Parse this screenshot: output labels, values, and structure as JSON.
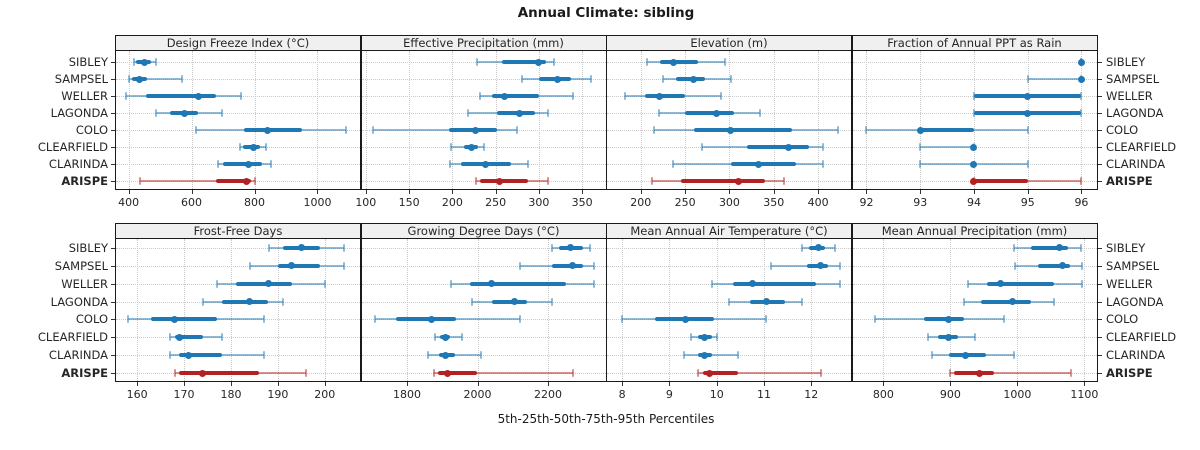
{
  "title": "Annual Climate: sibling",
  "caption": "5th-25th-50th-75th-95th Percentiles",
  "colors": {
    "series_blue": "#1f77b4",
    "highlight_red": "#b22222",
    "header_bg": "#f0f0f0",
    "panel_border": "#1a1a1a",
    "grid": "#c9c9c9",
    "tick_text": "#262626"
  },
  "chart_data": {
    "type": "scatter",
    "subtype": "percentile-interval-dotplot",
    "title": "Annual Climate: sibling",
    "caption": "5th-25th-50th-75th-95th Percentiles",
    "percentiles": [
      5,
      25,
      50,
      75,
      95
    ],
    "grid": "dotted",
    "legend": "none",
    "categories": [
      "SIBLEY",
      "SAMPSEL",
      "WELLER",
      "LAGONDA",
      "COLO",
      "CLEARFIELD",
      "CLARINDA",
      "ARISPE"
    ],
    "highlight_category": "ARISPE",
    "panels": [
      {
        "title": "Design Freeze Index (°C)",
        "row": 0,
        "col": 0,
        "xlim": [
          360,
          1135
        ],
        "ticks": [
          400,
          600,
          800,
          1000
        ],
        "series": [
          [
            416,
            425,
            452,
            470,
            487
          ],
          [
            400,
            410,
            435,
            458,
            570
          ],
          [
            391,
            456,
            623,
            679,
            756
          ],
          [
            487,
            533,
            577,
            620,
            698
          ],
          [
            615,
            765,
            840,
            950,
            1090
          ],
          [
            754,
            762,
            797,
            818,
            835
          ],
          [
            684,
            700,
            781,
            823,
            852
          ],
          [
            435,
            677,
            774,
            790,
            803
          ]
        ]
      },
      {
        "title": "Effective Precipitation (mm)",
        "row": 0,
        "col": 1,
        "xlim": [
          95,
          377
        ],
        "ticks": [
          100,
          150,
          200,
          250,
          300,
          350
        ],
        "series": [
          [
            228,
            257,
            300,
            308,
            318
          ],
          [
            280,
            300,
            322,
            337,
            360
          ],
          [
            232,
            246,
            260,
            300,
            340
          ],
          [
            218,
            252,
            278,
            295,
            310
          ],
          [
            108,
            196,
            227,
            252,
            275
          ],
          [
            198,
            213,
            222,
            230,
            237
          ],
          [
            197,
            210,
            238,
            268,
            288
          ],
          [
            227,
            232,
            255,
            288,
            310
          ]
        ]
      },
      {
        "title": "Elevation (m)",
        "row": 0,
        "col": 2,
        "xlim": [
          162,
          437
        ],
        "ticks": [
          200,
          250,
          300,
          350,
          400
        ],
        "series": [
          [
            207,
            222,
            237,
            265,
            295
          ],
          [
            225,
            240,
            260,
            272,
            302
          ],
          [
            182,
            205,
            221,
            250,
            290
          ],
          [
            221,
            250,
            285,
            305,
            335
          ],
          [
            215,
            260,
            301,
            370,
            422
          ],
          [
            269,
            320,
            367,
            390,
            405
          ],
          [
            236,
            302,
            333,
            375,
            405
          ],
          [
            213,
            245,
            310,
            340,
            362
          ]
        ]
      },
      {
        "title": "Fraction of Annual PPT as Rain",
        "row": 0,
        "col": 3,
        "xlim": [
          91.74,
          96.28
        ],
        "ticks": [
          92,
          93,
          94,
          95,
          96
        ],
        "series": [
          [
            96,
            96,
            96,
            96,
            96
          ],
          [
            95,
            96,
            96,
            96,
            96
          ],
          [
            94,
            94,
            95,
            96,
            96
          ],
          [
            94,
            94,
            95,
            96,
            96
          ],
          [
            92,
            93,
            93,
            94,
            95
          ],
          [
            93,
            94,
            94,
            94,
            94
          ],
          [
            93,
            94,
            94,
            94,
            95
          ],
          [
            94,
            94,
            94,
            95,
            96
          ]
        ]
      },
      {
        "title": "Frost-Free Days",
        "row": 1,
        "col": 0,
        "xlim": [
          155.5,
          207.5
        ],
        "ticks": [
          160,
          170,
          180,
          190,
          200
        ],
        "series": [
          [
            188,
            191,
            195,
            199,
            204
          ],
          [
            184,
            190,
            193,
            199,
            204
          ],
          [
            177,
            181,
            188,
            193,
            200
          ],
          [
            174,
            178,
            184,
            188,
            191
          ],
          [
            158,
            163,
            168,
            177,
            187
          ],
          [
            167,
            168,
            169,
            174,
            178
          ],
          [
            167,
            169,
            171,
            178,
            187
          ],
          [
            168,
            169,
            174,
            186,
            196
          ]
        ]
      },
      {
        "title": "Growing Degree Days (°C)",
        "row": 1,
        "col": 1,
        "xlim": [
          1671,
          2363
        ],
        "ticks": [
          1800,
          2000,
          2200
        ],
        "series": [
          [
            2210,
            2230,
            2265,
            2300,
            2320
          ],
          [
            2120,
            2210,
            2270,
            2300,
            2330
          ],
          [
            1925,
            1980,
            2040,
            2250,
            2330
          ],
          [
            1985,
            2040,
            2105,
            2140,
            2210
          ],
          [
            1710,
            1770,
            1870,
            1940,
            2120
          ],
          [
            1880,
            1893,
            1910,
            1922,
            1955
          ],
          [
            1860,
            1890,
            1910,
            1935,
            2010
          ],
          [
            1878,
            1888,
            1915,
            2000,
            2270
          ]
        ]
      },
      {
        "title": "Mean Annual Air Temperature (°C)",
        "row": 1,
        "col": 2,
        "xlim": [
          7.68,
          12.84
        ],
        "ticks": [
          8,
          9,
          10,
          11,
          12
        ],
        "series": [
          [
            11.8,
            11.95,
            12.15,
            12.3,
            12.5
          ],
          [
            11.15,
            11.9,
            12.2,
            12.35,
            12.6
          ],
          [
            9.9,
            10.35,
            10.75,
            12.1,
            12.6
          ],
          [
            10.25,
            10.7,
            11.05,
            11.45,
            11.8
          ],
          [
            8.0,
            8.7,
            9.35,
            9.95,
            11.05
          ],
          [
            9.45,
            9.6,
            9.75,
            9.9,
            10.0
          ],
          [
            9.3,
            9.6,
            9.75,
            9.9,
            10.45
          ],
          [
            9.6,
            9.7,
            9.85,
            10.45,
            12.2
          ]
        ]
      },
      {
        "title": "Mean Annual Precipitation (mm)",
        "row": 1,
        "col": 3,
        "xlim": [
          754,
          1118
        ],
        "ticks": [
          800,
          900,
          1000,
          1100
        ],
        "series": [
          [
            995,
            1020,
            1063,
            1075,
            1095
          ],
          [
            997,
            1030,
            1067,
            1078,
            1097
          ],
          [
            927,
            955,
            975,
            1055,
            1096
          ],
          [
            920,
            945,
            993,
            1020,
            1055
          ],
          [
            787,
            860,
            897,
            920,
            980
          ],
          [
            867,
            882,
            897,
            912,
            937
          ],
          [
            872,
            898,
            923,
            953,
            995
          ],
          [
            900,
            905,
            943,
            965,
            1080
          ]
        ]
      }
    ]
  }
}
